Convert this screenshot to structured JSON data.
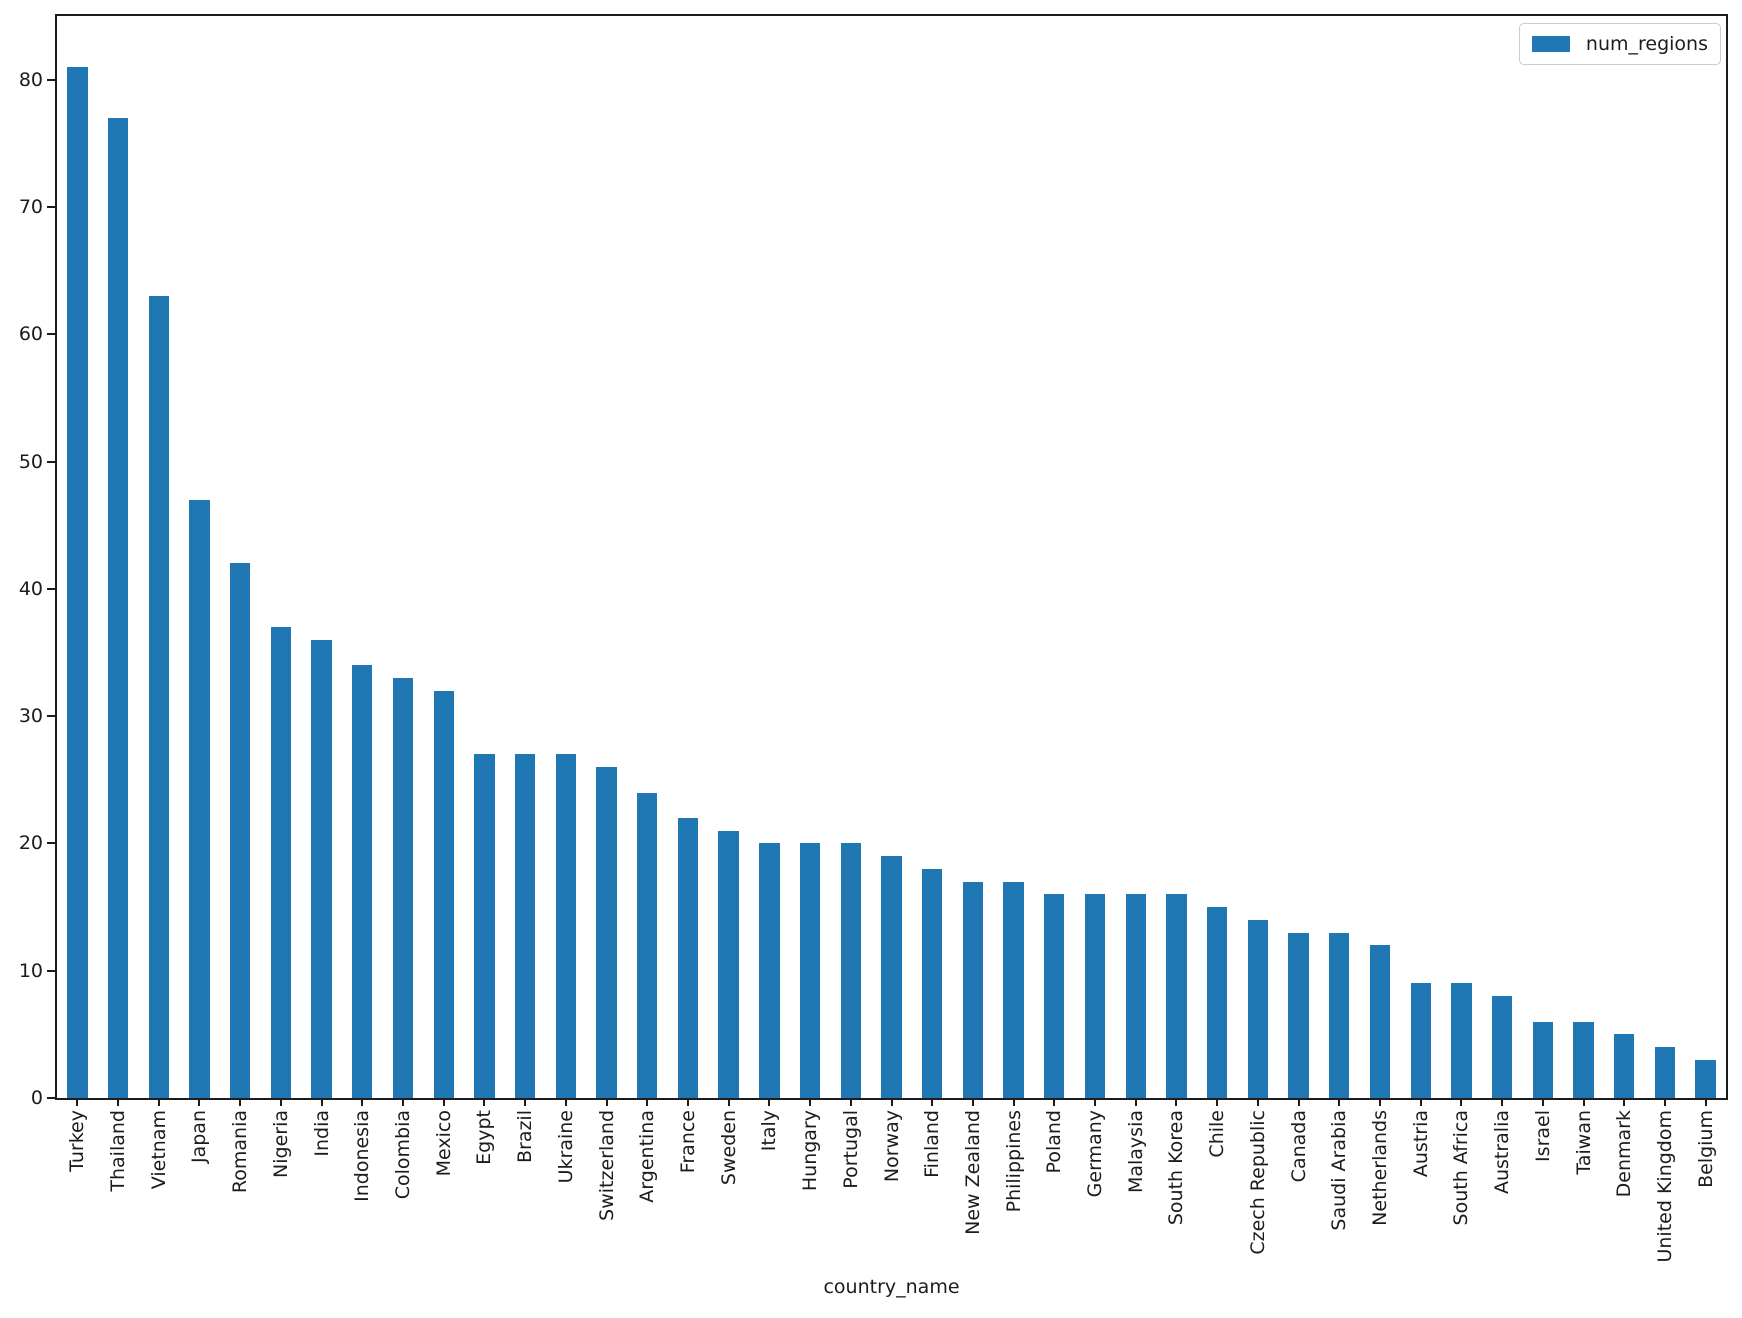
{
  "chart_data": {
    "type": "bar",
    "title": "",
    "xlabel": "country_name",
    "ylabel": "",
    "legend": [
      "num_regions"
    ],
    "legend_position": "upper right",
    "grid": false,
    "ylim": [
      0,
      85
    ],
    "y_ticks": [
      0,
      10,
      20,
      30,
      40,
      50,
      60,
      70,
      80
    ],
    "bar_color": "#1f77b4",
    "axis_color": "#1c1c1c",
    "text_color": "#1c1c1c",
    "categories": [
      "Turkey",
      "Thailand",
      "Vietnam",
      "Japan",
      "Romania",
      "Nigeria",
      "India",
      "Indonesia",
      "Colombia",
      "Mexico",
      "Egypt",
      "Brazil",
      "Ukraine",
      "Switzerland",
      "Argentina",
      "France",
      "Sweden",
      "Italy",
      "Hungary",
      "Portugal",
      "Norway",
      "Finland",
      "New Zealand",
      "Philippines",
      "Poland",
      "Germany",
      "Malaysia",
      "South Korea",
      "Chile",
      "Czech Republic",
      "Canada",
      "Saudi Arabia",
      "Netherlands",
      "Austria",
      "South Africa",
      "Australia",
      "Israel",
      "Taiwan",
      "Denmark",
      "United Kingdom",
      "Belgium"
    ],
    "values": [
      81,
      77,
      63,
      47,
      42,
      37,
      36,
      34,
      33,
      32,
      27,
      27,
      27,
      26,
      24,
      22,
      21,
      20,
      20,
      20,
      19,
      18,
      17,
      17,
      16,
      16,
      16,
      16,
      15,
      14,
      13,
      13,
      12,
      9,
      9,
      8,
      6,
      6,
      5,
      4,
      3
    ]
  }
}
